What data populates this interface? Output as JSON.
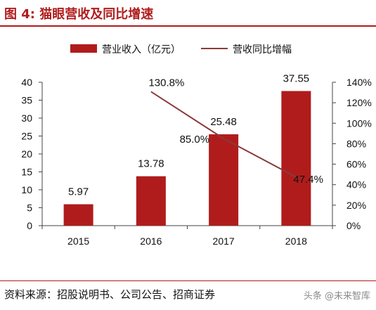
{
  "figure_title": "图 4:  猫眼营收及同比增速",
  "source_text": "资料来源：招股说明书、公司公告、招商证券",
  "watermark_text": "头条 @未来智库",
  "colors": {
    "bar": "#b01c1c",
    "line": "#8b3a3a",
    "accent": "#b01c1c"
  },
  "chart_data": {
    "type": "bar",
    "categories": [
      "2015",
      "2016",
      "2017",
      "2018"
    ],
    "series": [
      {
        "name": "营业收入（亿元）",
        "type": "bar",
        "axis": "left",
        "values": [
          5.97,
          13.78,
          25.48,
          37.55
        ],
        "labels": [
          "5.97",
          "13.78",
          "25.48",
          "37.55"
        ]
      },
      {
        "name": "营收同比增幅",
        "type": "line",
        "axis": "right",
        "values": [
          null,
          130.8,
          85.0,
          47.4
        ],
        "labels": [
          "",
          "130.8%",
          "85.0%",
          "47.4%"
        ]
      }
    ],
    "ylim": [
      0,
      40
    ],
    "y_ticks": [
      "0",
      "5",
      "10",
      "15",
      "20",
      "25",
      "30",
      "35",
      "40"
    ],
    "y2lim": [
      0,
      140
    ],
    "y2_ticks": [
      "0%",
      "20%",
      "40%",
      "60%",
      "80%",
      "100%",
      "120%",
      "140%"
    ],
    "legend_position": "top",
    "grid": false
  }
}
